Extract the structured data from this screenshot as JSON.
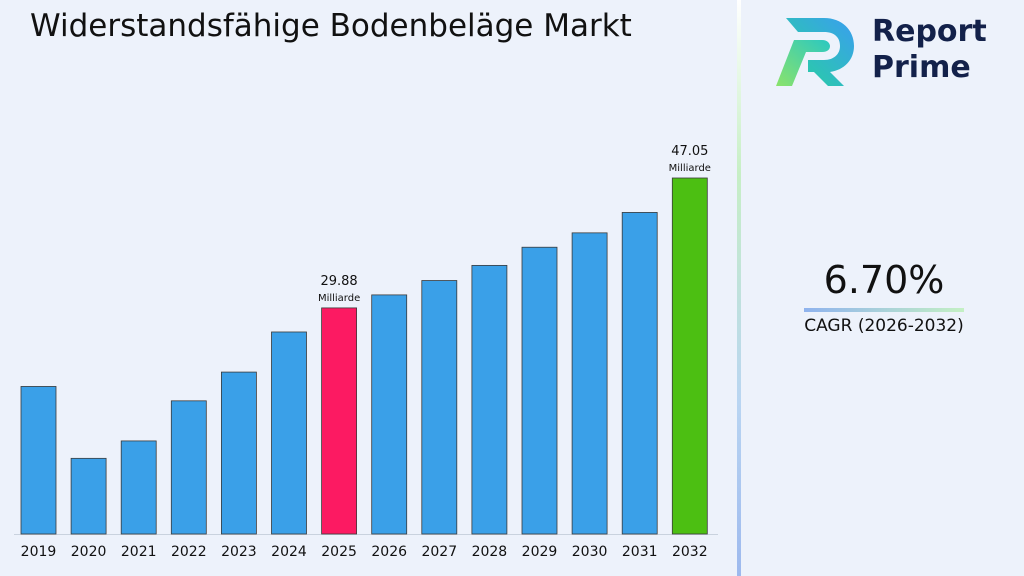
{
  "chart_data": {
    "type": "bar",
    "title": "Widerstandsfähige Bodenbeläge Markt",
    "categories": [
      "2019",
      "2020",
      "2021",
      "2022",
      "2023",
      "2024",
      "2025",
      "2026",
      "2027",
      "2028",
      "2029",
      "2030",
      "2031",
      "2032"
    ],
    "values": [
      19.5,
      10.0,
      12.3,
      17.6,
      21.4,
      26.7,
      29.88,
      31.6,
      33.5,
      35.5,
      37.9,
      39.8,
      42.5,
      47.05
    ],
    "annotations": [
      {
        "category": "2025",
        "value_label": "29.88",
        "unit_label": "Milliarde"
      },
      {
        "category": "2032",
        "value_label": "47.05",
        "unit_label": "Milliarde"
      }
    ],
    "colors": {
      "default": "#3aa0e8",
      "highlight_2025": "#fc1a62",
      "highlight_2032": "#4cbf12"
    },
    "ylim": [
      0,
      47.05
    ],
    "grid": false,
    "legend": "none"
  },
  "brand": {
    "line1": "Report",
    "line2": "Prime",
    "color": "#13214a"
  },
  "cagr": {
    "value": "6.70%",
    "label": "CAGR (2026-2032)"
  }
}
